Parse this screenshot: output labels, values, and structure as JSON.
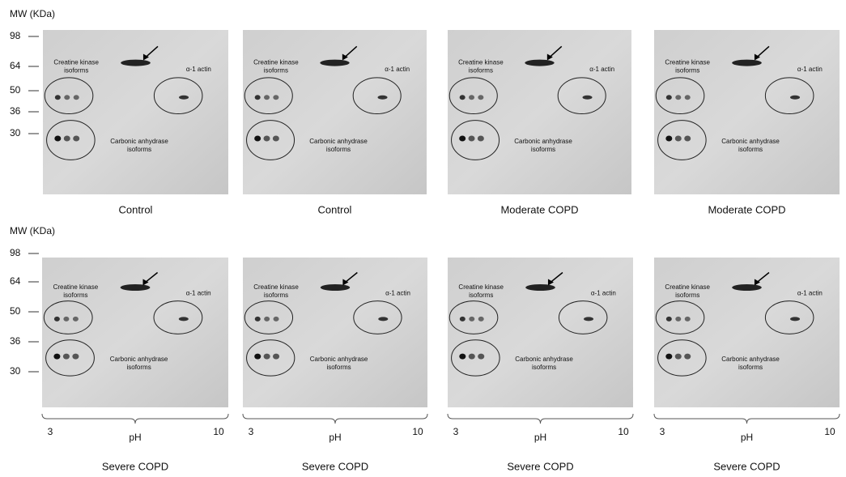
{
  "rows": [
    {
      "axis_title": "MW (KDa)",
      "ticks": [
        "98",
        "64",
        "50",
        "36",
        "30"
      ],
      "panels": [
        {
          "caption": "Control",
          "creatine_kinase": [
            "Creatine kinase",
            "isoforms"
          ],
          "actin": "α-1 actin",
          "carbonic_anhydrase": [
            "Carbonic anhydrase",
            "isoforms"
          ]
        },
        {
          "caption": "Control",
          "creatine_kinase": [
            "Creatine kinase",
            "isoforms"
          ],
          "actin": "α-1 actin",
          "carbonic_anhydrase": [
            "Carbonic anhydrase",
            "isoforms"
          ]
        },
        {
          "caption": "Moderate COPD",
          "creatine_kinase": [
            "Creatine kinase",
            "isoforms"
          ],
          "actin": "α-1 actin",
          "carbonic_anhydrase": [
            "Carbonic anhydrase",
            "isoforms"
          ]
        },
        {
          "caption": "Moderate COPD",
          "creatine_kinase": [
            "Creatine kinase",
            "isoforms"
          ],
          "actin": "α-1 actin",
          "carbonic_anhydrase": [
            "Carbonic anhydrase",
            "isoforms"
          ]
        }
      ]
    },
    {
      "axis_title": "MW (KDa)",
      "ticks": [
        "98",
        "64",
        "50",
        "36",
        "30"
      ],
      "panels": [
        {
          "caption": "Severe COPD",
          "creatine_kinase": [
            "Creatine kinase",
            "isoforms"
          ],
          "actin": "α-1 actin",
          "carbonic_anhydrase": [
            "Carbonic anhydrase",
            "isoforms"
          ],
          "ph": {
            "min": "3",
            "label": "pH",
            "max": "10"
          }
        },
        {
          "caption": "Severe COPD",
          "creatine_kinase": [
            "Creatine kinase",
            "isoforms"
          ],
          "actin": "α-1 actin",
          "carbonic_anhydrase": [
            "Carbonic anhydrase",
            "isoforms"
          ],
          "ph": {
            "min": "3",
            "label": "pH",
            "max": "10"
          }
        },
        {
          "caption": "Severe COPD",
          "creatine_kinase": [
            "Creatine kinase",
            "isoforms"
          ],
          "actin": "α-1 actin",
          "carbonic_anhydrase": [
            "Carbonic anhydrase",
            "isoforms"
          ],
          "ph": {
            "min": "3",
            "label": "pH",
            "max": "10"
          }
        },
        {
          "caption": "Severe COPD",
          "creatine_kinase": [
            "Creatine kinase",
            "isoforms"
          ],
          "actin": "α-1 actin",
          "carbonic_anhydrase": [
            "Carbonic anhydrase",
            "isoforms"
          ],
          "ph": {
            "min": "3",
            "label": "pH",
            "max": "10"
          }
        }
      ]
    }
  ]
}
